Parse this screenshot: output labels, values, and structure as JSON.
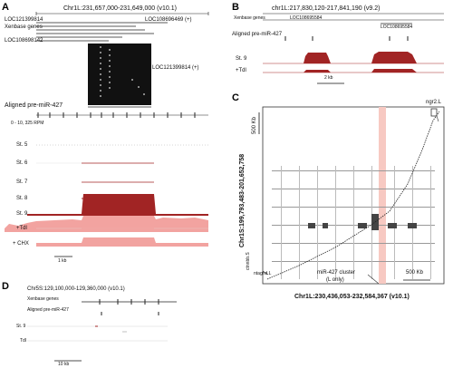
{
  "panels": {
    "A": {
      "letter": "A",
      "coord": "Chr1L:231,657,000-231,649,000 (v10.1)",
      "gene_label_top": "LOC121399814",
      "gene_label_right": "LOC108696469 (+)",
      "track_xenbase": "Xenbase genes",
      "gene_label_left": "LOC108698142",
      "gene_label_block": "LOC121399814 (+)",
      "aligned_label": "Aligned pre-miR-427",
      "scale": "0 - 10, 325 RPM",
      "tracks": [
        "St. 5",
        "St. 6",
        "St. 7",
        "St. 8",
        "St. 9",
        "+Tdl",
        "+ CHX"
      ],
      "scale_bar": "1 kb"
    },
    "B": {
      "letter": "B",
      "coord": "chr1L:217,830,120-217,841,190 (v9.2)",
      "track_xenbase": "Xenbase genes",
      "gene_label": "LOC108695584",
      "gene_label_right": "LOC108695584",
      "aligned_label": "Aligned pre-miR-427",
      "tracks": [
        "St. 9",
        "+Tdl"
      ],
      "scale_bar": "2 kb"
    },
    "C": {
      "letter": "C",
      "y_axis": "Chr1S:199,793,483-201,652,758",
      "x_axis": "Chr1L:230,436,053-232,584,367 (v10.1)",
      "top_right_label": "ngr2.L",
      "top_scale": "500 Kb",
      "left_bottom_label_1": "ctnnbb.S",
      "left_bottom_label_2": "ntaghd.L",
      "cluster_label_1": "miR-427 cluster",
      "cluster_label_2": "(L only)",
      "bottom_scale": "500 Kb"
    },
    "D": {
      "letter": "D",
      "coord": "Chr5S:129,100,000-129,360,000 (v10.1)",
      "track_xenbase": "Xenbase genes",
      "aligned_label": "Aligned pre-miR-427",
      "tracks": [
        "St. 9",
        "Tdl"
      ],
      "scale_bar": "10 kb"
    }
  },
  "colors": {
    "dark_red": "#a12424",
    "light_red": "#f2a3a0",
    "cluster_band": "#f7c9c2",
    "black": "#111111"
  }
}
